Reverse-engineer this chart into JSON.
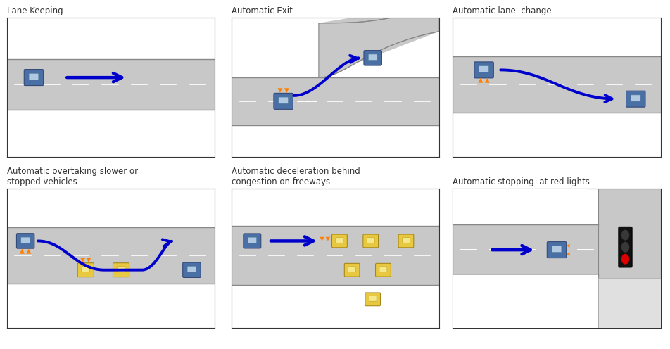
{
  "title_color": "#333333",
  "road_color": "#C8C8C8",
  "road_edge_color": "#888888",
  "lane_mark_color": "#FFFFFF",
  "car_blue_body": "#4A6FA5",
  "car_blue_wind": "#B0C8E0",
  "car_yellow_body": "#E8C840",
  "car_yellow_wind": "#F5E88A",
  "arrow_color": "#0000CC",
  "orange_color": "#FF8000",
  "traffic_light_bg": "#111111",
  "bg_color": "#FFFFFF",
  "panel_border": "#333333",
  "titles": [
    "Lane Keeping",
    "Automatic Exit",
    "Automatic lane  change",
    "Automatic overtaking slower or\nstopped vehicles",
    "Automatic deceleration behind\ncongestion on freeways",
    "Automatic stopping  at red lights"
  ],
  "title_fontsize": 8.5,
  "fig_width": 9.53,
  "fig_height": 4.96
}
